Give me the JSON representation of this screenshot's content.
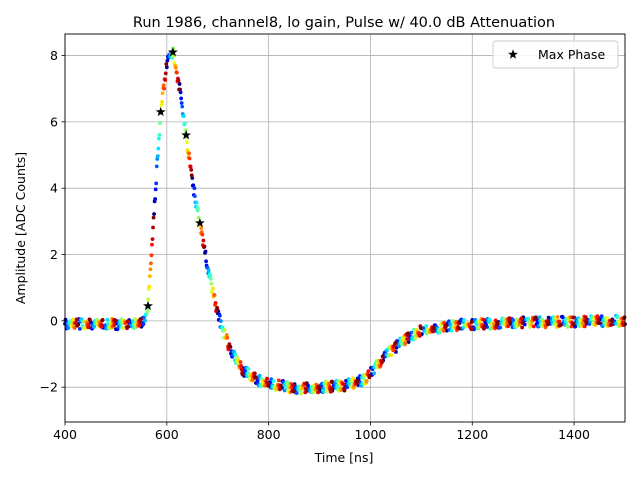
{
  "chart_data": {
    "type": "scatter",
    "title": "Run 1986, channel8, lo gain, Pulse w/ 40.0 dB Attenuation",
    "xlabel": "Time [ns]",
    "ylabel": "Amplitude [ADC Counts]",
    "xlim": [
      400,
      1500
    ],
    "ylim": [
      -3.05,
      8.65
    ],
    "xticks": [
      400,
      600,
      800,
      1000,
      1200,
      1400
    ],
    "xtick_labels": [
      "400",
      "600",
      "800",
      "1000",
      "1200",
      "1400"
    ],
    "yticks": [
      -2,
      0,
      2,
      4,
      6,
      8
    ],
    "ytick_labels": [
      "−2",
      "0",
      "2",
      "4",
      "6",
      "8"
    ],
    "grid": true,
    "legend": {
      "placement": "top-right",
      "entries": [
        "Max Phase"
      ]
    },
    "colormap": "jet",
    "waveform_period_ns": 25,
    "n_phases": 24,
    "pulse_profile": {
      "x": [
        400,
        545,
        555,
        563,
        575,
        588,
        600,
        612,
        625,
        638,
        650,
        665,
        680,
        700,
        725,
        750,
        780,
        820,
        860,
        900,
        950,
        990,
        1010,
        1040,
        1070,
        1100,
        1150,
        1200,
        1300,
        1500
      ],
      "y": [
        -0.1,
        -0.1,
        0.0,
        0.45,
        3.3,
        6.3,
        7.8,
        8.1,
        7.0,
        5.6,
        4.2,
        2.95,
        1.6,
        0.2,
        -0.9,
        -1.5,
        -1.8,
        -1.95,
        -2.05,
        -2.0,
        -1.95,
        -1.75,
        -1.4,
        -0.9,
        -0.55,
        -0.3,
        -0.15,
        -0.1,
        -0.05,
        0.0
      ]
    },
    "series": [
      {
        "name": "Max Phase",
        "marker": "star",
        "color": "#000000",
        "x": [
          563,
          588,
          612,
          638,
          665
        ],
        "y": [
          0.45,
          6.3,
          8.1,
          5.6,
          2.95
        ]
      }
    ]
  }
}
